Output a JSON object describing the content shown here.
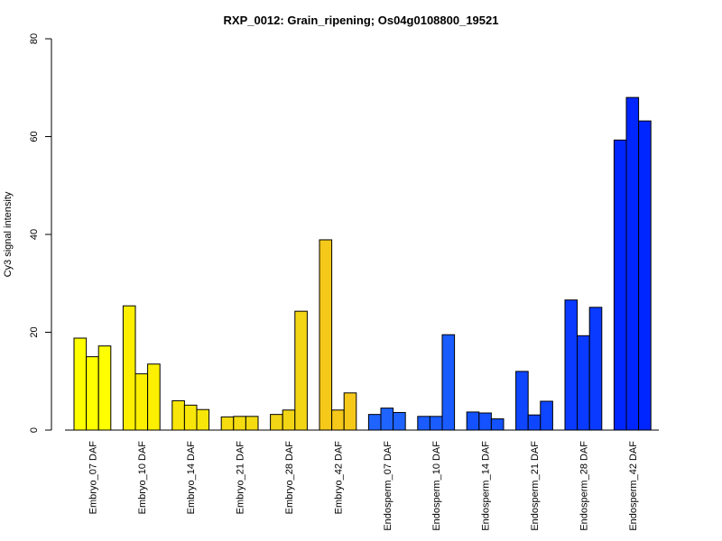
{
  "chart_data": {
    "type": "bar",
    "title": "RXP_0012: Grain_ripening; Os04g0108800_19521",
    "xlabel": "",
    "ylabel": "Cy3 signal intensity",
    "ylim": [
      0,
      80
    ],
    "yticks": [
      0,
      20,
      40,
      60,
      80
    ],
    "grid": false,
    "groups": [
      {
        "label": "Embryo_07 DAF",
        "color": "#FFFF00",
        "values": [
          18.8,
          15.0,
          17.2
        ]
      },
      {
        "label": "Embryo_10 DAF",
        "color": "#FCEF00",
        "values": [
          25.4,
          11.5,
          13.5
        ]
      },
      {
        "label": "Embryo_14 DAF",
        "color": "#F8E60A",
        "values": [
          6.0,
          5.1,
          4.2
        ]
      },
      {
        "label": "Embryo_21 DAF",
        "color": "#F4DC10",
        "values": [
          2.7,
          2.8,
          2.8
        ]
      },
      {
        "label": "Embryo_28 DAF",
        "color": "#F2D515",
        "values": [
          3.2,
          4.1,
          24.3
        ]
      },
      {
        "label": "Embryo_42 DAF",
        "color": "#F5C81A",
        "values": [
          38.9,
          4.1,
          7.6
        ]
      },
      {
        "label": "Endosperm_07 DAF",
        "color": "#1F64FF",
        "values": [
          3.2,
          4.5,
          3.6
        ]
      },
      {
        "label": "Endosperm_10 DAF",
        "color": "#1A5CFF",
        "values": [
          2.8,
          2.8,
          19.5
        ]
      },
      {
        "label": "Endosperm_14 DAF",
        "color": "#1452FF",
        "values": [
          3.7,
          3.5,
          2.3
        ]
      },
      {
        "label": "Endosperm_21 DAF",
        "color": "#0E46FF",
        "values": [
          12.0,
          3.1,
          5.9
        ]
      },
      {
        "label": "Endosperm_28 DAF",
        "color": "#0A3AFF",
        "values": [
          26.6,
          19.3,
          25.1
        ]
      },
      {
        "label": "Endosperm_42 DAF",
        "color": "#0026FF",
        "values": [
          59.3,
          68.0,
          63.2
        ]
      }
    ]
  }
}
